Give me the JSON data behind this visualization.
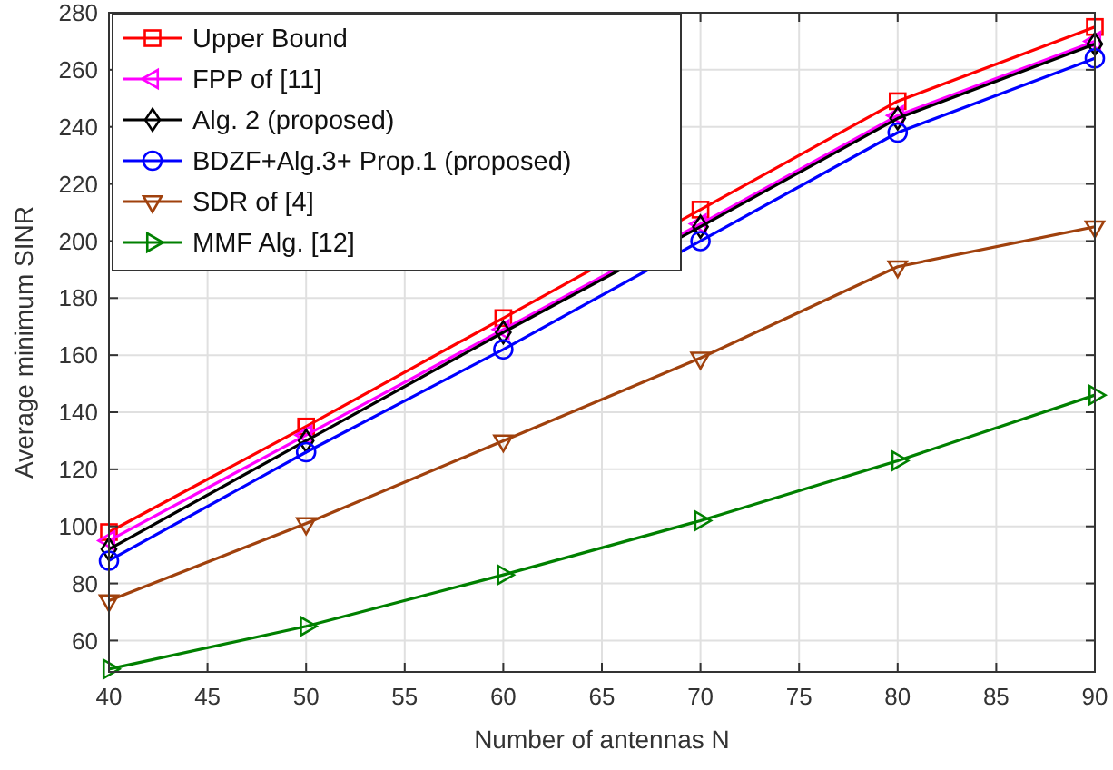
{
  "chart_data": {
    "type": "line",
    "xlabel": "Number of antennas N",
    "ylabel": "Average minimum SINR",
    "x": [
      40,
      50,
      60,
      70,
      80,
      90
    ],
    "series": [
      {
        "name": "Upper Bound",
        "color": "#ff0000",
        "marker": "square",
        "values": [
          98,
          135,
          173,
          211,
          249,
          275
        ]
      },
      {
        "name": "FPP of [11]",
        "color": "#ff00ff",
        "marker": "triangle-left",
        "values": [
          95,
          132,
          169,
          206,
          244,
          270
        ]
      },
      {
        "name": "Alg. 2 (proposed)",
        "color": "#000000",
        "marker": "diamond",
        "values": [
          92,
          130,
          168,
          205,
          243,
          269
        ]
      },
      {
        "name": "BDZF+Alg.3+ Prop.1 (proposed)",
        "color": "#0000ff",
        "marker": "circle",
        "values": [
          88,
          126,
          162,
          200,
          238,
          264
        ]
      },
      {
        "name": "SDR of [4]",
        "color": "#a0410d",
        "marker": "triangle-down",
        "values": [
          74,
          101,
          130,
          159,
          191,
          205
        ]
      },
      {
        "name": "MMF Alg. [12]",
        "color": "#008000",
        "marker": "triangle-right",
        "values": [
          50,
          65,
          83,
          102,
          123,
          146
        ]
      }
    ],
    "xlim": [
      40,
      90
    ],
    "xticks": [
      40,
      45,
      50,
      55,
      60,
      65,
      70,
      75,
      80,
      85,
      90
    ],
    "ylim": [
      49,
      280
    ],
    "yticks": [
      60,
      80,
      100,
      120,
      140,
      160,
      180,
      200,
      220,
      240,
      260,
      280
    ],
    "grid": true,
    "legend": "top left",
    "line_style": "solid"
  }
}
